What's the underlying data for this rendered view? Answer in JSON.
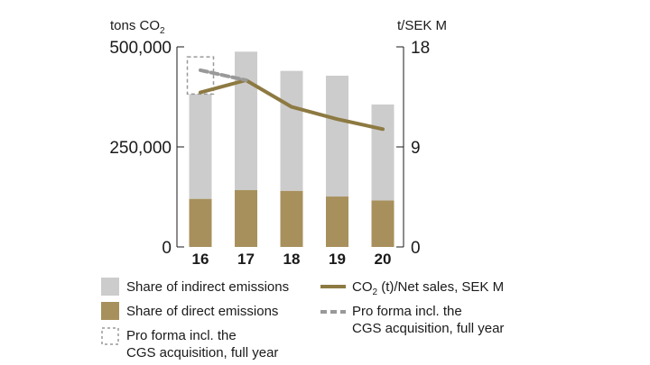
{
  "chart_data": {
    "type": "bar",
    "stacked": true,
    "categories": [
      "16",
      "17",
      "18",
      "19",
      "20"
    ],
    "series": [
      {
        "name": "Share of direct emissions",
        "axis": "left",
        "color": "#a8905c",
        "values": [
          120000,
          142000,
          140000,
          126000,
          116000
        ]
      },
      {
        "name": "Share of indirect emissions",
        "axis": "left",
        "color": "#cccccc",
        "values": [
          262000,
          346000,
          300000,
          302000,
          240000
        ]
      },
      {
        "name": "CO₂ (t)/Net sales, SEK M",
        "type": "line",
        "axis": "right",
        "color": "#8d7a42",
        "values": [
          13.9,
          15.0,
          12.6,
          11.5,
          10.6
        ]
      },
      {
        "name": "Pro forma incl. the CGS acquisition, full year",
        "type": "line",
        "axis": "right",
        "style": "dashed",
        "color": "#999999",
        "values": [
          15.9,
          15.0,
          null,
          null,
          null
        ]
      }
    ],
    "pro_forma_bar": {
      "category": "16",
      "total": 475000,
      "style": "dashed-outline"
    },
    "yleft": {
      "label": "tons CO₂",
      "ticks": [
        "0",
        "250,000",
        "500,000"
      ],
      "range": [
        0,
        500000
      ]
    },
    "yright": {
      "label": "t/SEK M",
      "ticks": [
        "0",
        "9",
        "18"
      ],
      "range": [
        0,
        18
      ]
    },
    "legend": {
      "left": [
        {
          "key": "indirect",
          "text": "Share of indirect emissions"
        },
        {
          "key": "direct",
          "text": "Share of direct emissions"
        },
        {
          "key": "proforma-bar",
          "lines": [
            "Pro forma incl. the",
            "CGS acquisition, full year"
          ]
        }
      ],
      "right": [
        {
          "key": "line",
          "text": "CO₂ (t)/Net sales, SEK M"
        },
        {
          "key": "proforma-line",
          "lines": [
            "Pro forma incl. the",
            "CGS acquisition, full year"
          ]
        }
      ]
    },
    "grid": false
  }
}
